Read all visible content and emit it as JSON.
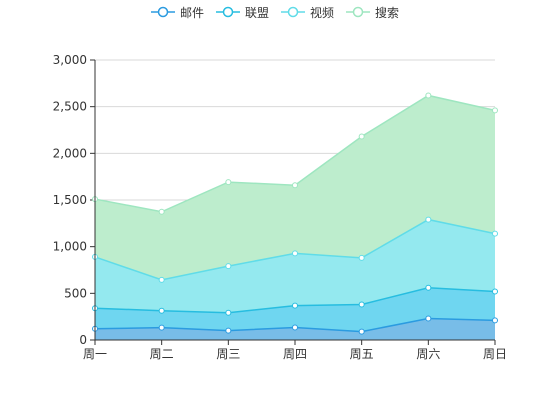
{
  "chart_data": {
    "type": "area",
    "stacked": true,
    "categories": [
      "周一",
      "周二",
      "周三",
      "周四",
      "周五",
      "周六",
      "周日"
    ],
    "series": [
      {
        "name": "邮件",
        "values": [
          120,
          132,
          101,
          134,
          90,
          230,
          210
        ],
        "color": "#2b9be0",
        "fill": "#78bde8"
      },
      {
        "name": "联盟",
        "values": [
          220,
          182,
          191,
          234,
          290,
          330,
          310
        ],
        "color": "#27bde0",
        "fill": "#6fd6f0"
      },
      {
        "name": "视频",
        "values": [
          550,
          330,
          500,
          560,
          500,
          730,
          620
        ],
        "color": "#60dce8",
        "fill": "#94e9ef"
      },
      {
        "name": "搜索",
        "values": [
          620,
          730,
          900,
          730,
          1300,
          1330,
          1320
        ],
        "color": "#9ee6c0",
        "fill": "#bdedcd"
      }
    ],
    "ylim": [
      0,
      3000
    ],
    "yticks": [
      "0",
      "500",
      "1,000",
      "1,500",
      "2,000",
      "2,500",
      "3,000"
    ],
    "grid": true,
    "legend_position": "top-center",
    "title": "",
    "xlabel": "",
    "ylabel": ""
  }
}
